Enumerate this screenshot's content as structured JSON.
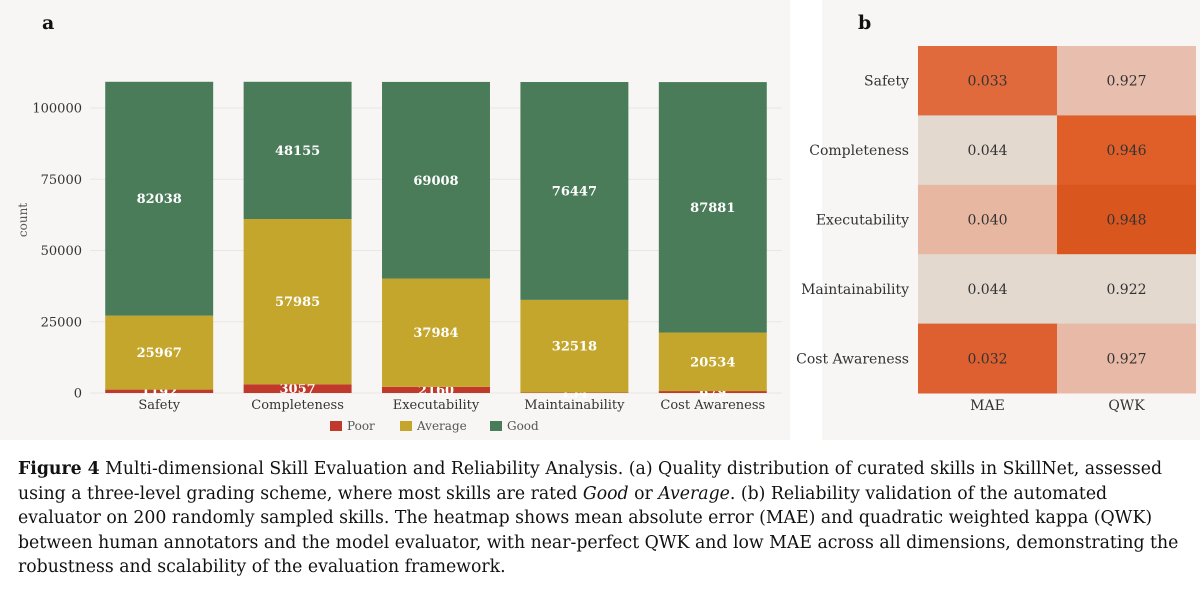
{
  "chart_data": [
    {
      "type": "bar",
      "stacked": true,
      "panel_label": "a",
      "categories": [
        "Safety",
        "Completeness",
        "Executability",
        "Maintainability",
        "Cost Awareness"
      ],
      "series": [
        {
          "name": "Poor",
          "color": "#c0392b",
          "values": [
            1192,
            3057,
            2160,
            154,
            679
          ]
        },
        {
          "name": "Average",
          "color": "#c4a62d",
          "values": [
            25967,
            57985,
            37984,
            32518,
            20534
          ]
        },
        {
          "name": "Good",
          "color": "#4a7c59",
          "values": [
            82038,
            48155,
            69008,
            76447,
            87881
          ]
        }
      ],
      "yticks": [
        0,
        25000,
        50000,
        75000,
        100000
      ],
      "ytick_labels": [
        "0",
        "25000",
        "50000",
        "75000",
        "100000"
      ],
      "xlabel": "",
      "ylabel": "count",
      "ylim": [
        0,
        120000
      ],
      "grid": true,
      "legend_position": "bottom-center"
    },
    {
      "type": "heatmap",
      "panel_label": "b",
      "rows": [
        "Safety",
        "Completeness",
        "Executability",
        "Maintainability",
        "Cost Awareness"
      ],
      "columns": [
        "MAE",
        "QWK"
      ],
      "values": [
        [
          0.033,
          0.927
        ],
        [
          0.044,
          0.946
        ],
        [
          0.04,
          0.948
        ],
        [
          0.044,
          0.922
        ],
        [
          0.032,
          0.927
        ]
      ],
      "value_labels": [
        [
          "0.033",
          "0.927"
        ],
        [
          "0.044",
          "0.946"
        ],
        [
          "0.040",
          "0.948"
        ],
        [
          "0.044",
          "0.922"
        ],
        [
          "0.032",
          "0.927"
        ]
      ],
      "colors": [
        [
          "#e06a3c",
          "#e8bfae"
        ],
        [
          "#e3d9ce",
          "#e05f29"
        ],
        [
          "#e8b7a1",
          "#d9561f"
        ],
        [
          "#e3d9ce",
          "#e3d9ce"
        ],
        [
          "#de6030",
          "#e8b9a6"
        ]
      ]
    }
  ],
  "caption": {
    "label": "Figure 4",
    "p1": " Multi-dimensional Skill Evaluation and Reliability Analysis. (a) Quality distribution of curated skills in SkillNet, assessed using a three-level grading scheme, where most skills are rated ",
    "em1": "Good",
    "p2": " or ",
    "em2": "Average",
    "p3": ". (b) Reliability validation of the automated evaluator on 200 randomly sampled skills. The heatmap shows mean absolute error (MAE) and quadratic weighted kappa (QWK) between human annotators and the model evaluator, with near-perfect QWK and low MAE across all dimensions, demonstrating the robustness and scalability of the evaluation framework."
  }
}
